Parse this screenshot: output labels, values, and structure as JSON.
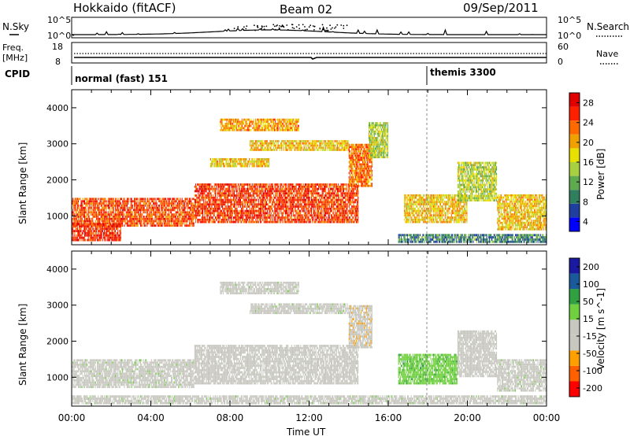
{
  "header": {
    "station": "Hokkaido (fitACF)",
    "beam": "Beam 02",
    "date": "09/Sep/2011"
  },
  "noise_panel": {
    "left_label": "N.Sky",
    "right_label": "N.Search",
    "ticks_left": [
      "10^5",
      "10^0"
    ],
    "ticks_right": [
      "10^5",
      "10^0"
    ]
  },
  "freq_panel": {
    "left_label_1": "Freq.",
    "left_label_2": "[MHz]",
    "right_label": "Nave",
    "ticks_left": [
      "18",
      "8"
    ],
    "ticks_right": [
      "60",
      "0"
    ]
  },
  "cpid_panel": {
    "label": "CPID",
    "modes": [
      {
        "name": "normal (fast) 151",
        "start_hour": 0
      },
      {
        "name": "themis 3300",
        "start_hour": 18.1
      }
    ]
  },
  "x_axis": {
    "label": "Time UT",
    "ticks": [
      "00:00",
      "04:00",
      "08:00",
      "12:00",
      "16:00",
      "20:00",
      "00:00"
    ]
  },
  "chart_data": [
    {
      "type": "heatmap",
      "name": "power",
      "ylabel": "Slant Range [km]",
      "yticks": [
        "4000",
        "3000",
        "2000",
        "1000"
      ],
      "ylim": [
        200,
        4500
      ],
      "xlim": [
        0,
        24
      ],
      "colorbar": {
        "label": "Power [dB]",
        "ticks": [
          "28",
          "24",
          "20",
          "16",
          "12",
          "8",
          "4"
        ],
        "range": [
          0,
          30
        ],
        "colors": [
          "#0000ff",
          "#1f3f9f",
          "#2f7f5f",
          "#5faa4f",
          "#a8d040",
          "#e8e000",
          "#f0a000",
          "#ff6a00",
          "#ff2000",
          "#e00000"
        ]
      },
      "regions": [
        {
          "x0": 0,
          "x1": 6.2,
          "y0": 700,
          "y1": 1500,
          "power": 24
        },
        {
          "x0": 0,
          "x1": 2.5,
          "y0": 300,
          "y1": 800,
          "power": 26
        },
        {
          "x0": 6.2,
          "x1": 14.5,
          "y0": 800,
          "y1": 1900,
          "power": 25
        },
        {
          "x0": 14.0,
          "x1": 15.2,
          "y0": 1800,
          "y1": 3000,
          "power": 22
        },
        {
          "x0": 7.5,
          "x1": 11.5,
          "y0": 3350,
          "y1": 3700,
          "power": 20
        },
        {
          "x0": 9.0,
          "x1": 14.0,
          "y0": 2800,
          "y1": 3100,
          "power": 18
        },
        {
          "x0": 7.0,
          "x1": 10.0,
          "y0": 2350,
          "y1": 2600,
          "power": 18
        },
        {
          "x0": 15.0,
          "x1": 16.0,
          "y0": 2600,
          "y1": 3600,
          "power": 14
        },
        {
          "x0": 16.8,
          "x1": 20.0,
          "y0": 800,
          "y1": 1600,
          "power": 18
        },
        {
          "x0": 19.5,
          "x1": 21.5,
          "y0": 1400,
          "y1": 2500,
          "power": 14
        },
        {
          "x0": 21.5,
          "x1": 24.0,
          "y0": 600,
          "y1": 1600,
          "power": 18
        },
        {
          "x0": 16.5,
          "x1": 24.0,
          "y0": 250,
          "y1": 500,
          "power": 8
        }
      ]
    },
    {
      "type": "heatmap",
      "name": "velocity",
      "ylabel": "Slant Range [km]",
      "yticks": [
        "4000",
        "3000",
        "2000",
        "1000"
      ],
      "ylim": [
        200,
        4500
      ],
      "xlim": [
        0,
        24
      ],
      "colorbar": {
        "label": "Velocity [m s^-1]",
        "ticks": [
          "200",
          "100",
          "50",
          "15",
          "-15",
          "-50",
          "-100",
          "-200"
        ],
        "range": [
          -250,
          250
        ],
        "colors": [
          "#ff0000",
          "#ff6000",
          "#ffa000",
          "#c8c8c0",
          "#c8c8c0",
          "#70d040",
          "#30a040",
          "#1a5a9a",
          "#1a1aa0"
        ]
      },
      "regions": [
        {
          "x0": 0,
          "x1": 6.2,
          "y0": 700,
          "y1": 1500,
          "velocity": 0
        },
        {
          "x0": 6.2,
          "x1": 14.5,
          "y0": 800,
          "y1": 1900,
          "velocity": -5
        },
        {
          "x0": 14.0,
          "x1": 15.2,
          "y0": 1800,
          "y1": 3000,
          "velocity": -60
        },
        {
          "x0": 7.5,
          "x1": 11.5,
          "y0": 3300,
          "y1": 3650,
          "velocity": 0
        },
        {
          "x0": 9.0,
          "x1": 14.0,
          "y0": 2750,
          "y1": 3050,
          "velocity": 0
        },
        {
          "x0": 16.5,
          "x1": 19.5,
          "y0": 800,
          "y1": 1650,
          "velocity": 60
        },
        {
          "x0": 19.5,
          "x1": 21.5,
          "y0": 1000,
          "y1": 2300,
          "velocity": -40
        },
        {
          "x0": 21.5,
          "x1": 24.0,
          "y0": 600,
          "y1": 1500,
          "velocity": 0
        },
        {
          "x0": 0,
          "x1": 24.0,
          "y0": 250,
          "y1": 500,
          "velocity": 0
        }
      ]
    }
  ]
}
